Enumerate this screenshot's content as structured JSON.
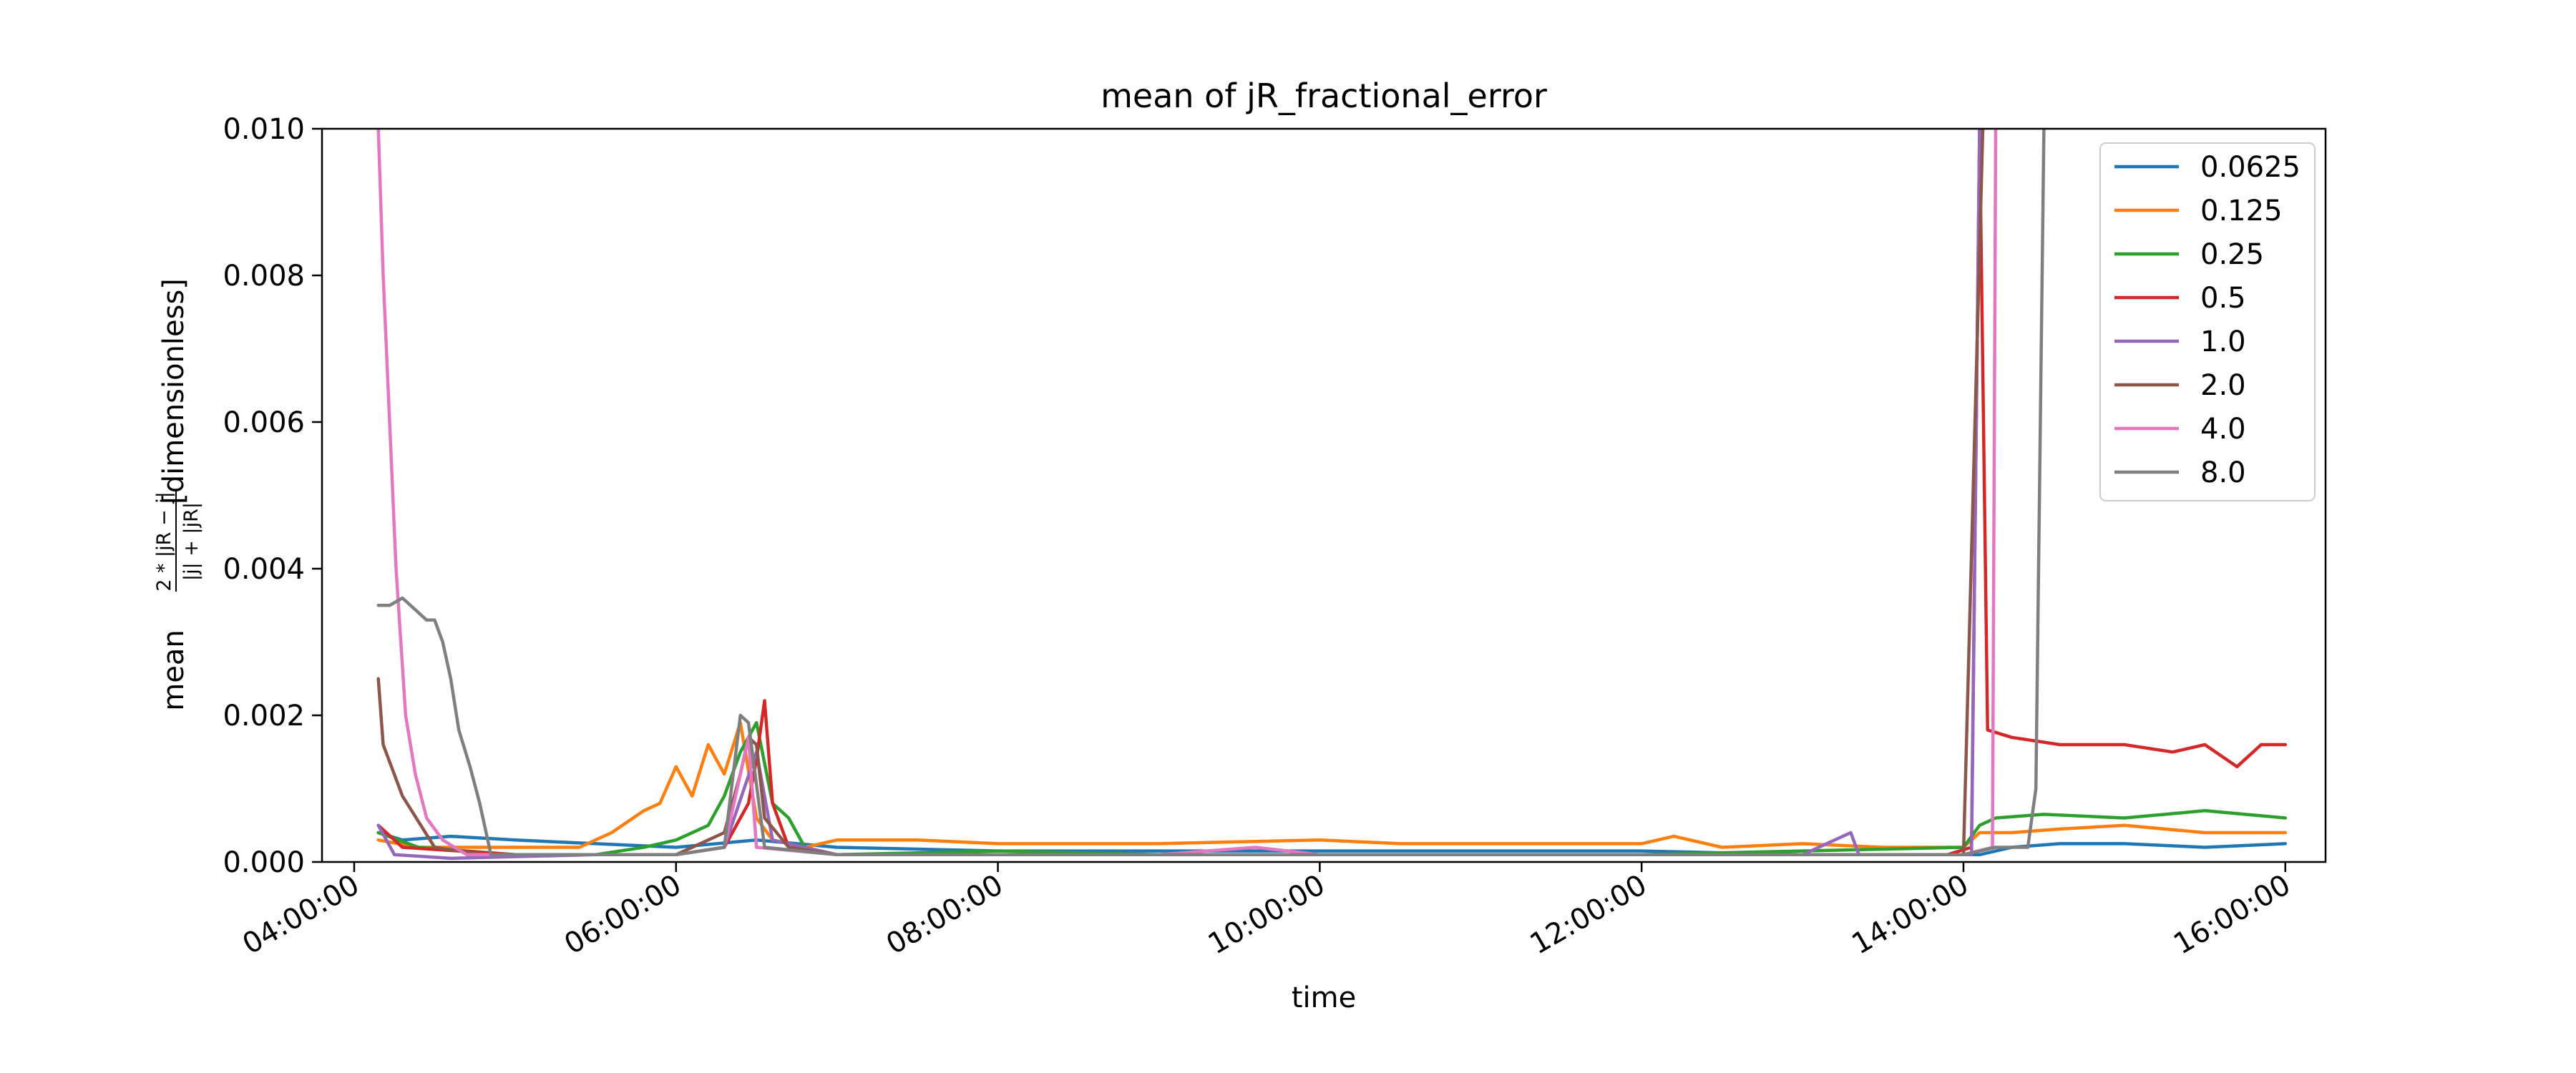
{
  "chart_data": {
    "type": "line",
    "title": "mean of jR_fractional_error",
    "xlabel": "time",
    "ylabel_prefix": "mean",
    "ylabel_unit": "[dimensionless]",
    "ylabel_fraction": {
      "numerator": "2 * |jR − j|",
      "denominator": "|j| + |jR|"
    },
    "x_unit": "hours",
    "xlim": [
      3.8,
      16.25
    ],
    "ylim": [
      0.0,
      0.01
    ],
    "x_ticks": [
      {
        "value": 4,
        "label": "04:00:00"
      },
      {
        "value": 6,
        "label": "06:00:00"
      },
      {
        "value": 8,
        "label": "08:00:00"
      },
      {
        "value": 10,
        "label": "10:00:00"
      },
      {
        "value": 12,
        "label": "12:00:00"
      },
      {
        "value": 14,
        "label": "14:00:00"
      },
      {
        "value": 16,
        "label": "16:00:00"
      }
    ],
    "y_ticks": [
      {
        "value": 0.0,
        "label": "0.000"
      },
      {
        "value": 0.002,
        "label": "0.002"
      },
      {
        "value": 0.004,
        "label": "0.004"
      },
      {
        "value": 0.006,
        "label": "0.006"
      },
      {
        "value": 0.008,
        "label": "0.008"
      },
      {
        "value": 0.01,
        "label": "0.010"
      }
    ],
    "grid": false,
    "legend_position": "top-right",
    "series": [
      {
        "name": "0.0625",
        "color": "#1f77b4",
        "points": [
          [
            4.15,
            0.0004
          ],
          [
            4.3,
            0.0003
          ],
          [
            4.6,
            0.00035
          ],
          [
            5.0,
            0.0003
          ],
          [
            5.5,
            0.00025
          ],
          [
            6.0,
            0.0002
          ],
          [
            6.5,
            0.0003
          ],
          [
            7.0,
            0.0002
          ],
          [
            8.0,
            0.00015
          ],
          [
            9.0,
            0.00015
          ],
          [
            10.0,
            0.00015
          ],
          [
            11.0,
            0.00015
          ],
          [
            12.0,
            0.00015
          ],
          [
            13.0,
            0.0001
          ],
          [
            13.9,
            0.0001
          ],
          [
            14.1,
            0.0001
          ],
          [
            14.3,
            0.0002
          ],
          [
            14.6,
            0.00025
          ],
          [
            15.0,
            0.00025
          ],
          [
            15.5,
            0.0002
          ],
          [
            16.0,
            0.00025
          ]
        ]
      },
      {
        "name": "0.125",
        "color": "#ff7f0e",
        "points": [
          [
            4.15,
            0.0003
          ],
          [
            4.4,
            0.0002
          ],
          [
            5.0,
            0.0002
          ],
          [
            5.4,
            0.0002
          ],
          [
            5.6,
            0.0004
          ],
          [
            5.8,
            0.0007
          ],
          [
            5.9,
            0.0008
          ],
          [
            6.0,
            0.0013
          ],
          [
            6.1,
            0.0009
          ],
          [
            6.2,
            0.0016
          ],
          [
            6.3,
            0.0012
          ],
          [
            6.4,
            0.0019
          ],
          [
            6.5,
            0.0006
          ],
          [
            6.6,
            0.0003
          ],
          [
            6.8,
            0.0002
          ],
          [
            7.0,
            0.0003
          ],
          [
            7.5,
            0.0003
          ],
          [
            8.0,
            0.00025
          ],
          [
            9.0,
            0.00025
          ],
          [
            10.0,
            0.0003
          ],
          [
            10.5,
            0.00025
          ],
          [
            11.0,
            0.00025
          ],
          [
            12.0,
            0.00025
          ],
          [
            12.2,
            0.00035
          ],
          [
            12.5,
            0.0002
          ],
          [
            13.0,
            0.00025
          ],
          [
            13.5,
            0.0002
          ],
          [
            14.0,
            0.0002
          ],
          [
            14.1,
            0.0004
          ],
          [
            14.3,
            0.0004
          ],
          [
            14.6,
            0.00045
          ],
          [
            15.0,
            0.0005
          ],
          [
            15.5,
            0.0004
          ],
          [
            16.0,
            0.0004
          ]
        ]
      },
      {
        "name": "0.25",
        "color": "#2ca02c",
        "points": [
          [
            4.15,
            0.0004
          ],
          [
            4.4,
            0.0002
          ],
          [
            5.0,
            0.0001
          ],
          [
            5.5,
            0.0001
          ],
          [
            5.8,
            0.0002
          ],
          [
            6.0,
            0.0003
          ],
          [
            6.2,
            0.0005
          ],
          [
            6.3,
            0.0009
          ],
          [
            6.4,
            0.0015
          ],
          [
            6.5,
            0.0019
          ],
          [
            6.6,
            0.0008
          ],
          [
            6.7,
            0.0006
          ],
          [
            6.8,
            0.0002
          ],
          [
            7.0,
            0.0001
          ],
          [
            8.0,
            0.00015
          ],
          [
            9.0,
            0.0001
          ],
          [
            10.0,
            0.0001
          ],
          [
            11.0,
            0.0001
          ],
          [
            12.0,
            0.0001
          ],
          [
            13.0,
            0.00015
          ],
          [
            14.0,
            0.0002
          ],
          [
            14.1,
            0.0005
          ],
          [
            14.2,
            0.0006
          ],
          [
            14.5,
            0.00065
          ],
          [
            15.0,
            0.0006
          ],
          [
            15.5,
            0.0007
          ],
          [
            16.0,
            0.0006
          ]
        ]
      },
      {
        "name": "0.5",
        "color": "#d62728",
        "points": [
          [
            4.15,
            0.0005
          ],
          [
            4.3,
            0.0002
          ],
          [
            5.0,
            0.0001
          ],
          [
            5.5,
            0.0001
          ],
          [
            6.0,
            0.0001
          ],
          [
            6.3,
            0.0002
          ],
          [
            6.45,
            0.0008
          ],
          [
            6.5,
            0.0014
          ],
          [
            6.55,
            0.0022
          ],
          [
            6.6,
            0.0008
          ],
          [
            6.7,
            0.0002
          ],
          [
            7.0,
            0.0001
          ],
          [
            8.0,
            0.0001
          ],
          [
            9.0,
            0.0001
          ],
          [
            10.0,
            0.0001
          ],
          [
            11.0,
            0.0001
          ],
          [
            12.0,
            0.0001
          ],
          [
            13.0,
            0.0001
          ],
          [
            13.9,
            0.0001
          ],
          [
            14.05,
            0.0002
          ],
          [
            14.1,
            0.01
          ],
          [
            14.15,
            0.0018
          ],
          [
            14.3,
            0.0017
          ],
          [
            14.6,
            0.0016
          ],
          [
            15.0,
            0.0016
          ],
          [
            15.3,
            0.0015
          ],
          [
            15.5,
            0.0016
          ],
          [
            15.7,
            0.0013
          ],
          [
            15.85,
            0.0016
          ],
          [
            16.0,
            0.0016
          ]
        ]
      },
      {
        "name": "1.0",
        "color": "#9467bd",
        "points": [
          [
            4.15,
            0.0005
          ],
          [
            4.25,
            0.0001
          ],
          [
            4.6,
            5e-05
          ],
          [
            5.5,
            0.0001
          ],
          [
            6.0,
            0.0001
          ],
          [
            6.3,
            0.0002
          ],
          [
            6.5,
            0.0015
          ],
          [
            6.6,
            0.0003
          ],
          [
            7.0,
            0.0001
          ],
          [
            8.0,
            0.0001
          ],
          [
            9.0,
            0.0001
          ],
          [
            10.0,
            0.0001
          ],
          [
            11.0,
            0.0001
          ],
          [
            12.0,
            0.0001
          ],
          [
            13.0,
            0.0001
          ],
          [
            13.3,
            0.0004
          ],
          [
            13.35,
            0.0001
          ],
          [
            14.0,
            0.0001
          ],
          [
            14.05,
            0.0001
          ],
          [
            14.1,
            0.01
          ]
        ]
      },
      {
        "name": "2.0",
        "color": "#8c564b",
        "points": [
          [
            4.15,
            0.0025
          ],
          [
            4.18,
            0.0016
          ],
          [
            4.3,
            0.0009
          ],
          [
            4.5,
            0.0002
          ],
          [
            4.8,
            0.0001
          ],
          [
            5.5,
            0.0001
          ],
          [
            6.0,
            0.0001
          ],
          [
            6.3,
            0.0004
          ],
          [
            6.4,
            0.0012
          ],
          [
            6.45,
            0.0017
          ],
          [
            6.5,
            0.0016
          ],
          [
            6.55,
            0.0006
          ],
          [
            6.7,
            0.0002
          ],
          [
            7.0,
            0.0001
          ],
          [
            8.0,
            0.0001
          ],
          [
            9.0,
            0.0001
          ],
          [
            10.0,
            0.0001
          ],
          [
            11.0,
            0.0001
          ],
          [
            12.0,
            0.0001
          ],
          [
            13.0,
            0.0001
          ],
          [
            14.0,
            0.0001
          ],
          [
            14.12,
            0.01
          ]
        ]
      },
      {
        "name": "4.0",
        "color": "#e377c2",
        "points": [
          [
            4.15,
            0.01
          ],
          [
            4.18,
            0.008
          ],
          [
            4.22,
            0.006
          ],
          [
            4.26,
            0.004
          ],
          [
            4.32,
            0.002
          ],
          [
            4.38,
            0.0012
          ],
          [
            4.45,
            0.0006
          ],
          [
            4.55,
            0.0003
          ],
          [
            4.7,
            0.0001
          ],
          [
            5.0,
            0.0001
          ],
          [
            5.5,
            0.0001
          ],
          [
            6.0,
            0.0001
          ],
          [
            6.3,
            0.0002
          ],
          [
            6.45,
            0.0017
          ],
          [
            6.5,
            0.0002
          ],
          [
            7.0,
            0.0001
          ],
          [
            8.0,
            0.0001
          ],
          [
            9.0,
            0.0001
          ],
          [
            9.6,
            0.0002
          ],
          [
            10.0,
            0.0001
          ],
          [
            11.0,
            0.0001
          ],
          [
            12.0,
            0.0001
          ],
          [
            13.0,
            0.0001
          ],
          [
            14.0,
            0.0001
          ],
          [
            14.18,
            0.0002
          ],
          [
            14.2,
            0.01
          ]
        ]
      },
      {
        "name": "8.0",
        "color": "#7f7f7f",
        "points": [
          [
            4.15,
            0.0035
          ],
          [
            4.22,
            0.0035
          ],
          [
            4.3,
            0.0036
          ],
          [
            4.4,
            0.0034
          ],
          [
            4.45,
            0.0033
          ],
          [
            4.5,
            0.0033
          ],
          [
            4.55,
            0.003
          ],
          [
            4.6,
            0.0025
          ],
          [
            4.65,
            0.0018
          ],
          [
            4.72,
            0.0013
          ],
          [
            4.78,
            0.0008
          ],
          [
            4.82,
            0.0004
          ],
          [
            4.85,
            0.0001
          ],
          [
            5.0,
            0.0001
          ],
          [
            5.5,
            0.0001
          ],
          [
            6.0,
            0.0001
          ],
          [
            6.3,
            0.0002
          ],
          [
            6.4,
            0.002
          ],
          [
            6.45,
            0.0019
          ],
          [
            6.55,
            0.0002
          ],
          [
            7.0,
            0.0001
          ],
          [
            8.0,
            0.0001
          ],
          [
            9.0,
            0.0001
          ],
          [
            10.0,
            0.0001
          ],
          [
            11.0,
            0.0001
          ],
          [
            12.0,
            0.0001
          ],
          [
            13.0,
            0.0001
          ],
          [
            14.0,
            0.0001
          ],
          [
            14.2,
            0.0002
          ],
          [
            14.4,
            0.0002
          ],
          [
            14.45,
            0.001
          ],
          [
            14.5,
            0.01
          ]
        ]
      }
    ]
  }
}
